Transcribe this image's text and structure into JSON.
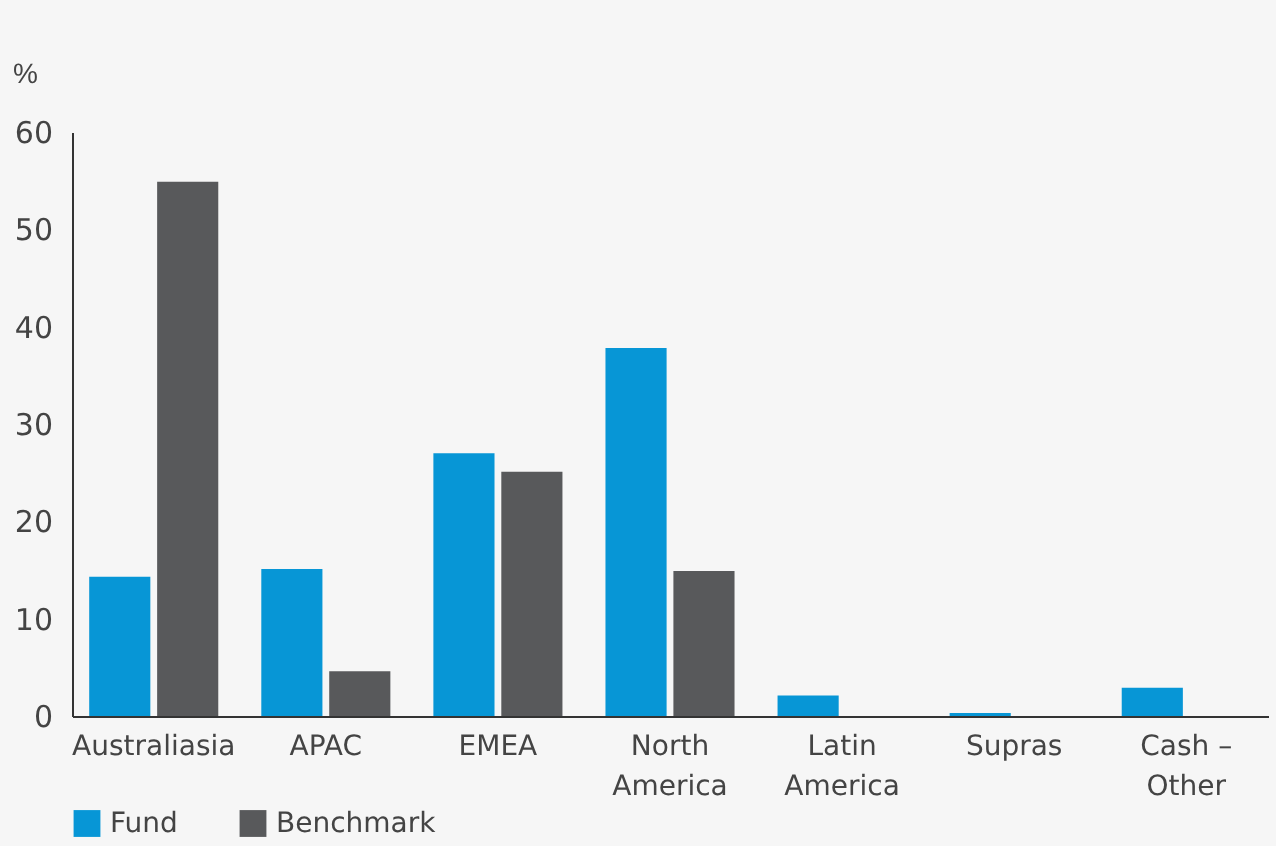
{
  "chart_data": {
    "type": "bar",
    "ylabel": "%",
    "categories": [
      "Australiasia",
      "APAC",
      "EMEA",
      "North America",
      "Latin America",
      "Supras",
      "Cash – Other"
    ],
    "series": [
      {
        "name": "Fund",
        "color": "#0796d6",
        "values": [
          14.3,
          15.1,
          27.0,
          37.8,
          2.1,
          0.3,
          2.9
        ]
      },
      {
        "name": "Benchmark",
        "color": "#58595b",
        "values": [
          54.9,
          4.6,
          25.1,
          14.9,
          0,
          0,
          0
        ]
      }
    ],
    "ylim": [
      0,
      60
    ],
    "yticks": [
      0,
      10,
      20,
      30,
      40,
      50,
      60
    ],
    "grid": false,
    "legend": "bottom"
  }
}
